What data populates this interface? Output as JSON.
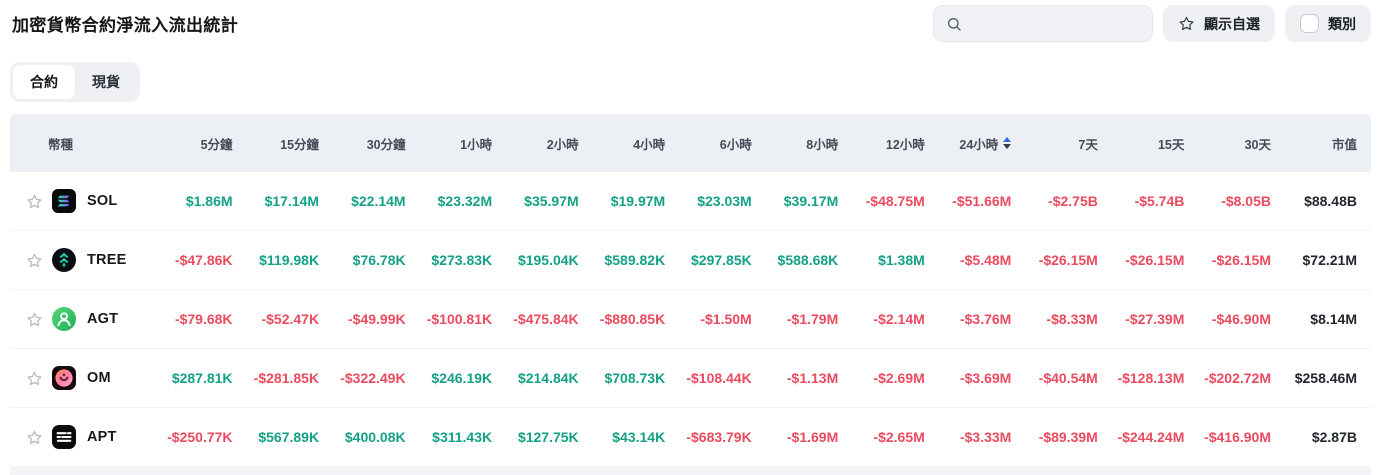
{
  "page": {
    "title": "加密貨幣合約淨流入流出統計"
  },
  "tabs": [
    {
      "label": "合約",
      "active": true
    },
    {
      "label": "現貨",
      "active": false
    }
  ],
  "toolbar": {
    "search_placeholder": "",
    "search_value": "",
    "favorites_label": "顯示自選",
    "category_label": "類別",
    "category_checked": false
  },
  "colors": {
    "positive": "#14a186",
    "negative": "#ea4b5f",
    "sort_active": "#2e6bd8",
    "header_bg": "#eceff3"
  },
  "icons": {
    "search": "search-icon",
    "favorites_star": "star-icon",
    "row_star": "favorite-star-icon",
    "sort": "sort-up-down-icon"
  },
  "table": {
    "columns": [
      "幣種",
      "5分鐘",
      "15分鐘",
      "30分鐘",
      "1小時",
      "2小時",
      "4小時",
      "6小時",
      "8小時",
      "12小時",
      "24小時",
      "7天",
      "15天",
      "30天",
      "市值"
    ],
    "column_keys": [
      "coin",
      "5m",
      "15m",
      "30m",
      "1h",
      "2h",
      "4h",
      "6h",
      "8h",
      "12h",
      "24h",
      "7d",
      "15d",
      "30d",
      "mcap"
    ],
    "sorted_column": "24小時",
    "sort_direction": "asc",
    "rows": [
      {
        "symbol": "SOL",
        "icon": "sol",
        "values": [
          "$1.86M",
          "$17.14M",
          "$22.14M",
          "$23.32M",
          "$35.97M",
          "$19.97M",
          "$23.03M",
          "$39.17M",
          "-$48.75M",
          "-$51.66M",
          "-$2.75B",
          "-$5.74B",
          "-$8.05B"
        ],
        "market_cap": "$88.48B"
      },
      {
        "symbol": "TREE",
        "icon": "tree",
        "values": [
          "-$47.86K",
          "$119.98K",
          "$76.78K",
          "$273.83K",
          "$195.04K",
          "$589.82K",
          "$297.85K",
          "$588.68K",
          "$1.38M",
          "-$5.48M",
          "-$26.15M",
          "-$26.15M",
          "-$26.15M"
        ],
        "market_cap": "$72.21M"
      },
      {
        "symbol": "AGT",
        "icon": "agt",
        "values": [
          "-$79.68K",
          "-$52.47K",
          "-$49.99K",
          "-$100.81K",
          "-$475.84K",
          "-$880.85K",
          "-$1.50M",
          "-$1.79M",
          "-$2.14M",
          "-$3.76M",
          "-$8.33M",
          "-$27.39M",
          "-$46.90M"
        ],
        "market_cap": "$8.14M"
      },
      {
        "symbol": "OM",
        "icon": "om",
        "values": [
          "$287.81K",
          "-$281.85K",
          "-$322.49K",
          "$246.19K",
          "$214.84K",
          "$708.73K",
          "-$108.44K",
          "-$1.13M",
          "-$2.69M",
          "-$3.69M",
          "-$40.54M",
          "-$128.13M",
          "-$202.72M"
        ],
        "market_cap": "$258.46M"
      },
      {
        "symbol": "APT",
        "icon": "apt",
        "values": [
          "-$250.77K",
          "$567.89K",
          "$400.08K",
          "$311.43K",
          "$127.75K",
          "$43.14K",
          "-$683.79K",
          "-$1.69M",
          "-$2.65M",
          "-$3.33M",
          "-$89.39M",
          "-$244.24M",
          "-$416.90M"
        ],
        "market_cap": "$2.87B"
      }
    ]
  }
}
